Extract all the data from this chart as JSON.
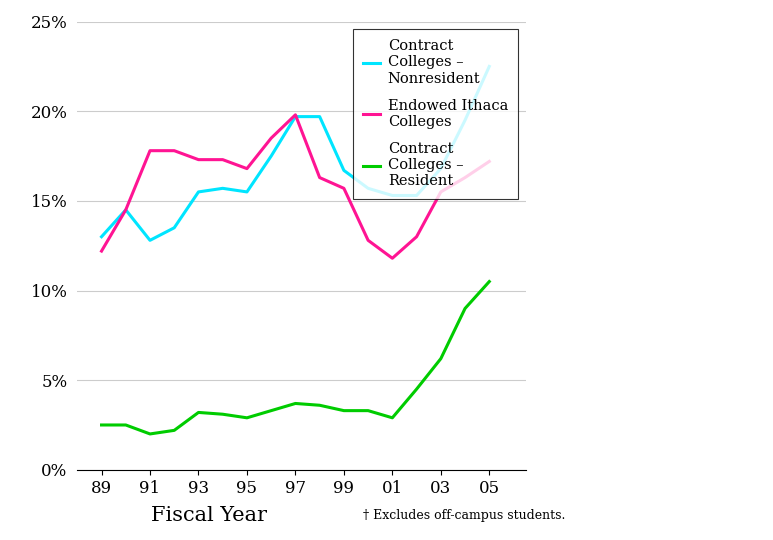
{
  "years": [
    89,
    90,
    91,
    92,
    93,
    94,
    95,
    96,
    97,
    98,
    99,
    100,
    101,
    102,
    103,
    104,
    105
  ],
  "contract_nonresident": [
    0.13,
    0.145,
    0.128,
    0.135,
    0.155,
    0.157,
    0.155,
    0.175,
    0.197,
    0.197,
    0.167,
    0.157,
    0.153,
    0.153,
    0.168,
    0.195,
    0.225
  ],
  "endowed_ithaca": [
    0.122,
    0.145,
    0.178,
    0.178,
    0.173,
    0.173,
    0.168,
    0.185,
    0.198,
    0.163,
    0.157,
    0.128,
    0.118,
    0.13,
    0.155,
    0.163,
    0.172
  ],
  "contract_resident": [
    0.025,
    0.025,
    0.02,
    0.022,
    0.032,
    0.031,
    0.029,
    0.033,
    0.037,
    0.036,
    0.033,
    0.033,
    0.029,
    0.045,
    0.062,
    0.09,
    0.105
  ],
  "line_colors": {
    "contract_nonresident": "#00E5FF",
    "endowed_ithaca": "#FF1493",
    "contract_resident": "#00CC00"
  },
  "ylim": [
    0,
    0.25
  ],
  "yticks": [
    0,
    0.05,
    0.1,
    0.15,
    0.2,
    0.25
  ],
  "ytick_labels": [
    "0%",
    "5%",
    "10%",
    "15%",
    "20%",
    "25%"
  ],
  "xtick_positions": [
    89,
    91,
    93,
    95,
    97,
    99,
    101,
    103,
    105
  ],
  "xtick_labels": [
    "89",
    "91",
    "93",
    "95",
    "97",
    "99",
    "01",
    "03",
    "05"
  ],
  "xlabel": "Fiscal Year",
  "footnote": "† Excludes off-campus students.",
  "legend_labels": [
    "Contract\nColleges –\nNonresident",
    "Endowed Ithaca\nColleges",
    "Contract\nColleges –\nResident"
  ],
  "background_color": "#ffffff",
  "line_width": 2.2,
  "xlim": [
    88.0,
    106.5
  ]
}
